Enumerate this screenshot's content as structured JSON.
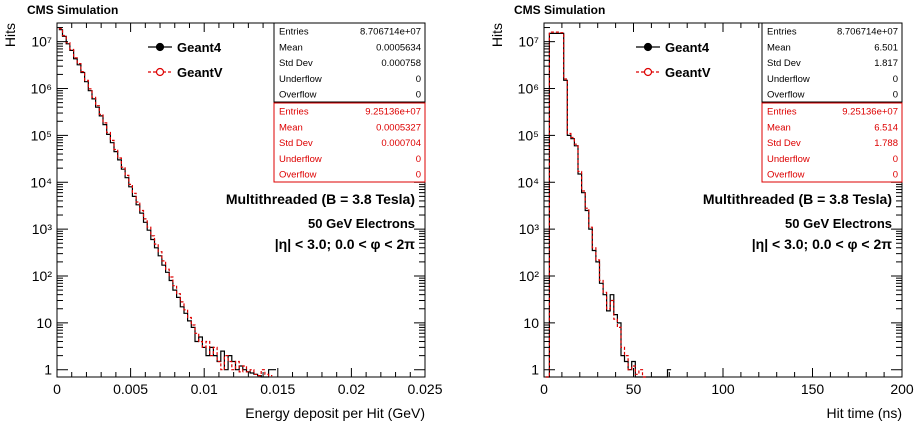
{
  "chart_data": [
    {
      "type": "histogram",
      "header": "CMS Simulation",
      "xlabel": "Energy deposit per Hit (GeV)",
      "ylabel": "Hits",
      "xlim": [
        0,
        0.025
      ],
      "ylim": [
        0.7,
        25000000
      ],
      "log_y": true,
      "grid": false,
      "x_ticks": [
        "0",
        "0.005",
        "0.01",
        "0.015",
        "0.02",
        "0.025"
      ],
      "x_tick_values": [
        0,
        0.005,
        0.01,
        0.015,
        0.02,
        0.025
      ],
      "y_ticks": [
        "1",
        "10",
        "10²",
        "10³",
        "10⁴",
        "10⁵",
        "10⁶",
        "10⁷"
      ],
      "y_tick_values": [
        1,
        10,
        100,
        1000,
        10000,
        100000,
        1000000,
        10000000
      ],
      "legend": [
        {
          "name": "Geant4",
          "color": "#000000"
        },
        {
          "name": "GeantV",
          "color": "#dd0000"
        }
      ],
      "annotations": [
        "Multithreaded (B = 3.8 Tesla)",
        "50 GeV Electrons",
        "|η| < 3.0; 0.0 < φ < 2π"
      ],
      "stats": [
        {
          "color": "#000000",
          "rows": [
            [
              "Entries",
              "8.706714e+07"
            ],
            [
              "Mean",
              "0.0005634"
            ],
            [
              "Std Dev",
              "0.000758"
            ],
            [
              "Underflow",
              "0"
            ],
            [
              "Overflow",
              "0"
            ]
          ]
        },
        {
          "color": "#dd0000",
          "rows": [
            [
              "Entries",
              "9.25136e+07"
            ],
            [
              "Mean",
              "0.0005327"
            ],
            [
              "Std Dev",
              "0.000704"
            ],
            [
              "Underflow",
              "0"
            ],
            [
              "Overflow",
              "0"
            ]
          ]
        }
      ],
      "series": [
        {
          "name": "Geant4",
          "color": "#000000",
          "style": "solid",
          "points": [
            [
              0.00025,
              18000000.0
            ],
            [
              0.0005,
              13000000.0
            ],
            [
              0.00075,
              9000000.0
            ],
            [
              0.001,
              6500000.0
            ],
            [
              0.00125,
              4300000.0
            ],
            [
              0.0015,
              3200000.0
            ],
            [
              0.00175,
              2200000.0
            ],
            [
              0.002,
              1400000.0
            ],
            [
              0.00225,
              900000.0
            ],
            [
              0.0025,
              600000.0
            ],
            [
              0.00275,
              400000.0
            ],
            [
              0.003,
              260000.0
            ],
            [
              0.00325,
              170000.0
            ],
            [
              0.0035,
              105000.0
            ],
            [
              0.00375,
              70000.0
            ],
            [
              0.004,
              45000.0
            ],
            [
              0.00425,
              30000.0
            ],
            [
              0.0045,
              19000.0
            ],
            [
              0.00475,
              12500.0
            ],
            [
              0.005,
              8000.0
            ],
            [
              0.00525,
              5000.0
            ],
            [
              0.0055,
              3300.0
            ],
            [
              0.00575,
              2200.0
            ],
            [
              0.006,
              1400.0
            ],
            [
              0.00625,
              950
            ],
            [
              0.0065,
              600
            ],
            [
              0.00675,
              400
            ],
            [
              0.007,
              270
            ],
            [
              0.00725,
              170
            ],
            [
              0.0075,
              120
            ],
            [
              0.00775,
              80
            ],
            [
              0.008,
              50
            ],
            [
              0.00825,
              35
            ],
            [
              0.0085,
              22
            ],
            [
              0.00875,
              16
            ],
            [
              0.009,
              11
            ],
            [
              0.00925,
              8
            ],
            [
              0.0095,
              4
            ],
            [
              0.00975,
              5
            ],
            [
              0.01,
              3
            ],
            [
              0.01025,
              2
            ],
            [
              0.0105,
              3
            ],
            [
              0.01075,
              2
            ],
            [
              0.011,
              1.5
            ],
            [
              0.01125,
              2.5
            ],
            [
              0.0115,
              1
            ],
            [
              0.01175,
              2
            ],
            [
              0.012,
              1.5
            ],
            [
              0.01225,
              1
            ],
            [
              0.0125,
              1.2
            ],
            [
              0.01275,
              1
            ],
            [
              0.013,
              0.9
            ],
            [
              0.01325,
              0.85
            ],
            [
              0.0135,
              0.8
            ],
            [
              0.01375,
              0.75
            ],
            [
              0.014,
              0.7
            ],
            [
              0.01425,
              0.7
            ],
            [
              0.0145,
              1
            ],
            [
              0.01475,
              1
            ]
          ]
        },
        {
          "name": "GeantV",
          "color": "#dd0000",
          "style": "dashed",
          "points": [
            [
              0.00025,
              19000000.0
            ],
            [
              0.0005,
              13500000.0
            ],
            [
              0.00075,
              9500000.0
            ],
            [
              0.001,
              6800000.0
            ],
            [
              0.00125,
              4500000.0
            ],
            [
              0.0015,
              3400000.0
            ],
            [
              0.00175,
              2300000.0
            ],
            [
              0.002,
              1500000.0
            ],
            [
              0.00225,
              980000.0
            ],
            [
              0.0025,
              650000.0
            ],
            [
              0.00275,
              430000.0
            ],
            [
              0.003,
              280000.0
            ],
            [
              0.00325,
              185000.0
            ],
            [
              0.0035,
              115000.0
            ],
            [
              0.00375,
              78000.0
            ],
            [
              0.004,
              50000.0
            ],
            [
              0.00425,
              33000.0
            ],
            [
              0.0045,
              21000.0
            ],
            [
              0.00475,
              14000.0
            ],
            [
              0.005,
              9000.0
            ],
            [
              0.00525,
              5800.0
            ],
            [
              0.0055,
              3800.0
            ],
            [
              0.00575,
              2500.0
            ],
            [
              0.006,
              1650.0
            ],
            [
              0.00625,
              1100.0
            ],
            [
              0.0065,
              720
            ],
            [
              0.00675,
              480
            ],
            [
              0.007,
              330
            ],
            [
              0.00725,
              210
            ],
            [
              0.0075,
              140
            ],
            [
              0.00775,
              95
            ],
            [
              0.008,
              62
            ],
            [
              0.00825,
              42
            ],
            [
              0.0085,
              28
            ],
            [
              0.00875,
              19
            ],
            [
              0.009,
              13
            ],
            [
              0.00925,
              9
            ],
            [
              0.0095,
              6
            ],
            [
              0.00975,
              4
            ],
            [
              0.01,
              3
            ],
            [
              0.01025,
              4
            ],
            [
              0.0105,
              2
            ],
            [
              0.01075,
              3
            ],
            [
              0.011,
              1.5
            ],
            [
              0.01125,
              1
            ],
            [
              0.0115,
              2
            ],
            [
              0.01175,
              1.5
            ],
            [
              0.012,
              1
            ],
            [
              0.01225,
              1.5
            ],
            [
              0.0125,
              0.9
            ],
            [
              0.01275,
              1.2
            ],
            [
              0.013,
              0.9
            ],
            [
              0.01325,
              1
            ],
            [
              0.0135,
              0.8
            ],
            [
              0.01375,
              0.75
            ],
            [
              0.014,
              1
            ],
            [
              0.01425,
              0.8
            ],
            [
              0.0145,
              0.75
            ]
          ]
        }
      ]
    },
    {
      "type": "histogram",
      "header": "CMS Simulation",
      "xlabel": "Hit time (ns)",
      "ylabel": "Hits",
      "xlim": [
        0,
        200
      ],
      "ylim": [
        0.7,
        25000000
      ],
      "log_y": true,
      "grid": false,
      "x_ticks": [
        "0",
        "50",
        "100",
        "150",
        "200"
      ],
      "x_tick_values": [
        0,
        50,
        100,
        150,
        200
      ],
      "y_ticks": [
        "1",
        "10",
        "10²",
        "10³",
        "10⁴",
        "10⁵",
        "10⁶",
        "10⁷"
      ],
      "y_tick_values": [
        1,
        10,
        100,
        1000,
        10000,
        100000,
        1000000,
        10000000
      ],
      "legend": [
        {
          "name": "Geant4",
          "color": "#000000"
        },
        {
          "name": "GeantV",
          "color": "#dd0000"
        }
      ],
      "annotations": [
        "Multithreaded (B = 3.8 Tesla)",
        "50 GeV Electrons",
        "|η| < 3.0; 0.0 < φ < 2π"
      ],
      "stats": [
        {
          "color": "#000000",
          "rows": [
            [
              "Entries",
              "8.706714e+07"
            ],
            [
              "Mean",
              "6.501"
            ],
            [
              "Std Dev",
              "1.817"
            ],
            [
              "Underflow",
              "0"
            ],
            [
              "Overflow",
              "0"
            ]
          ]
        },
        {
          "color": "#dd0000",
          "rows": [
            [
              "Entries",
              "9.25136e+07"
            ],
            [
              "Mean",
              "6.514"
            ],
            [
              "Std Dev",
              "1.788"
            ],
            [
              "Underflow",
              "0"
            ],
            [
              "Overflow",
              "0"
            ]
          ]
        }
      ],
      "series": [
        {
          "name": "Geant4",
          "color": "#000000",
          "style": "solid",
          "points": [
            [
              2,
              0.7
            ],
            [
              4,
              15000000.0
            ],
            [
              6,
              15000000.0
            ],
            [
              8,
              15000000.0
            ],
            [
              10,
              15000000.0
            ],
            [
              12,
              1500000.0
            ],
            [
              14,
              100000.0
            ],
            [
              16,
              85000.0
            ],
            [
              18,
              60000.0
            ],
            [
              20,
              15000.0
            ],
            [
              22,
              6000.0
            ],
            [
              24,
              2500.0
            ],
            [
              26,
              1000.0
            ],
            [
              28,
              350
            ],
            [
              30,
              200
            ],
            [
              32,
              70
            ],
            [
              34,
              40
            ],
            [
              36,
              18
            ],
            [
              38,
              40
            ],
            [
              40,
              15
            ],
            [
              42,
              10
            ],
            [
              44,
              2
            ],
            [
              46,
              1.5
            ],
            [
              48,
              1
            ],
            [
              50,
              1.5
            ],
            [
              52,
              0.7
            ],
            [
              54,
              0.7
            ],
            [
              56,
              0.7
            ],
            [
              58,
              0.7
            ],
            [
              60,
              0.7
            ],
            [
              62,
              0.7
            ],
            [
              64,
              0.7
            ],
            [
              66,
              0.7
            ],
            [
              68,
              0.7
            ],
            [
              70,
              1
            ]
          ]
        },
        {
          "name": "GeantV",
          "color": "#dd0000",
          "style": "dashed",
          "points": [
            [
              2,
              0.7
            ],
            [
              4,
              16000000.0
            ],
            [
              6,
              16000000.0
            ],
            [
              8,
              16000000.0
            ],
            [
              10,
              15500000.0
            ],
            [
              12,
              1600000.0
            ],
            [
              14,
              110000.0
            ],
            [
              16,
              90000.0
            ],
            [
              18,
              65000.0
            ],
            [
              20,
              17000.0
            ],
            [
              22,
              6500.0
            ],
            [
              24,
              2800.0
            ],
            [
              26,
              1100.0
            ],
            [
              28,
              400
            ],
            [
              30,
              220
            ],
            [
              32,
              80
            ],
            [
              34,
              45
            ],
            [
              36,
              20
            ],
            [
              38,
              30
            ],
            [
              40,
              12
            ],
            [
              42,
              8
            ],
            [
              44,
              3
            ],
            [
              46,
              2
            ],
            [
              48,
              1
            ],
            [
              50,
              1.2
            ],
            [
              52,
              0.8
            ],
            [
              54,
              1
            ],
            [
              56,
              0.7
            ]
          ]
        }
      ]
    }
  ]
}
